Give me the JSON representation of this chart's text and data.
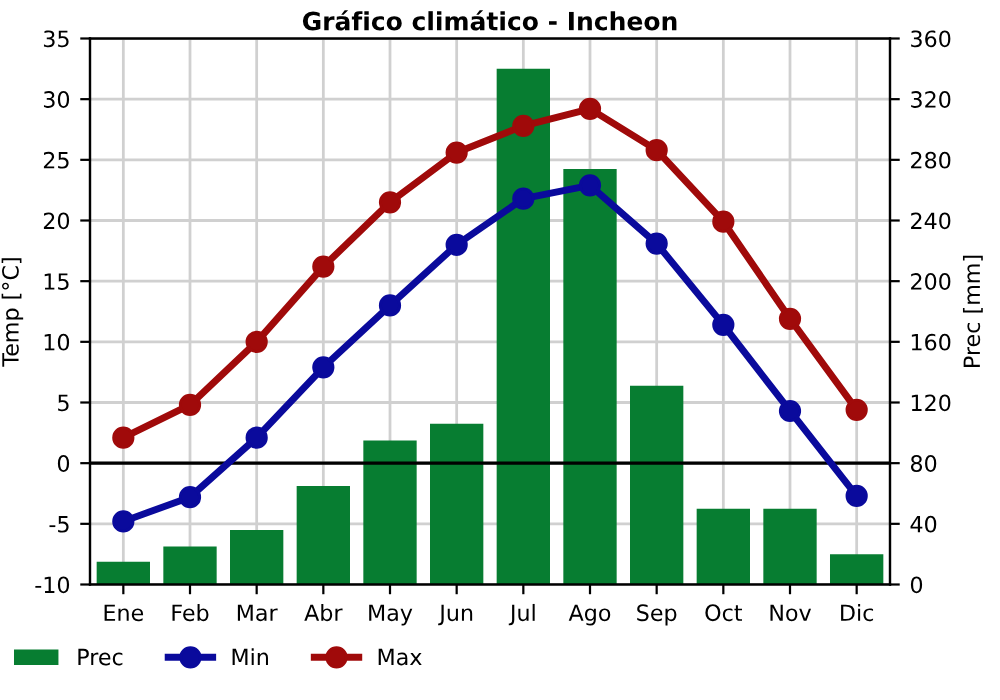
{
  "chart_data": {
    "type": "line",
    "title": "Gráfico climático - Incheon",
    "ylabel": "Temp [°C]",
    "y2label": "Prec [mm]",
    "categories": [
      "Ene",
      "Feb",
      "Mar",
      "Abr",
      "May",
      "Jun",
      "Jul",
      "Ago",
      "Sep",
      "Oct",
      "Nov",
      "Dic"
    ],
    "series": [
      {
        "name": "Prec",
        "type": "bar",
        "axis": "y2",
        "color": "#077d31",
        "values": [
          15,
          25,
          36,
          65,
          95,
          106,
          340,
          274,
          131,
          50,
          50,
          20
        ]
      },
      {
        "name": "Min",
        "color": "#0a0a9c",
        "values": [
          -4.8,
          -2.8,
          2.1,
          7.9,
          13,
          18,
          21.8,
          22.9,
          18.1,
          11.4,
          4.3,
          -2.7
        ]
      },
      {
        "name": "Max",
        "color": "#a00a0a",
        "values": [
          2.1,
          4.8,
          10,
          16.2,
          21.5,
          25.6,
          27.8,
          29.2,
          25.8,
          19.9,
          11.9,
          4.4
        ]
      }
    ],
    "marker": "circle",
    "ylim": [
      -10,
      35
    ],
    "yticks": [
      -10,
      -5,
      0,
      5,
      10,
      15,
      20,
      25,
      30,
      35
    ],
    "y2lim": [
      0,
      360
    ],
    "y2ticks": [
      0,
      40,
      80,
      120,
      160,
      200,
      240,
      280,
      320,
      360
    ],
    "ref_lines": [
      {
        "axis": "y",
        "value": 0,
        "color": "#000000"
      }
    ],
    "grid": true,
    "legend": "bottom"
  }
}
